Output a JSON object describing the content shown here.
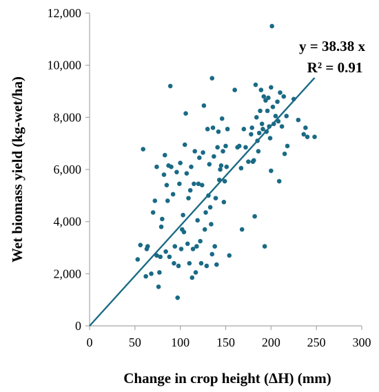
{
  "chart_data": {
    "type": "scatter",
    "title": "",
    "xlabel": "Change in crop height (ΔH) (mm)",
    "ylabel": "Wet biomass yield (kg-wet/ha)",
    "xlim": [
      0,
      300
    ],
    "ylim": [
      0,
      12000
    ],
    "x_ticks": [
      0,
      50,
      100,
      150,
      200,
      250,
      300
    ],
    "y_ticks": [
      0,
      2000,
      4000,
      6000,
      8000,
      10000,
      12000
    ],
    "x_tick_labels": [
      "0",
      "50",
      "100",
      "150",
      "200",
      "250",
      "300"
    ],
    "y_tick_labels": [
      "0",
      "2,000",
      "4,000",
      "6,000",
      "8,000",
      "10,000",
      "12,000"
    ],
    "grid": false,
    "legend": "none",
    "colors": {
      "points": "#1a6a85",
      "trendline": "#1a6a85"
    },
    "trendline": {
      "slope": 38.38,
      "intercept": 0,
      "x_range": [
        0,
        248
      ]
    },
    "annotations": {
      "equation": "y = 38.38 x",
      "r2": "R² = 0.91"
    },
    "series": [
      {
        "points": [
          [
            53,
            2550
          ],
          [
            56,
            3100
          ],
          [
            59,
            6780
          ],
          [
            62,
            1900
          ],
          [
            63,
            2950
          ],
          [
            64,
            3050
          ],
          [
            68,
            2000
          ],
          [
            70,
            4350
          ],
          [
            72,
            4800
          ],
          [
            74,
            6100
          ],
          [
            74,
            2700
          ],
          [
            76,
            1500
          ],
          [
            77,
            2050
          ],
          [
            78,
            2650
          ],
          [
            79,
            3800
          ],
          [
            80,
            4100
          ],
          [
            82,
            5800
          ],
          [
            83,
            6550
          ],
          [
            84,
            2850
          ],
          [
            85,
            5400
          ],
          [
            86,
            4800
          ],
          [
            87,
            6150
          ],
          [
            88,
            2650
          ],
          [
            89,
            9200
          ],
          [
            90,
            6100
          ],
          [
            92,
            5050
          ],
          [
            93,
            2400
          ],
          [
            94,
            3050
          ],
          [
            96,
            5900
          ],
          [
            97,
            1080
          ],
          [
            98,
            2300
          ],
          [
            99,
            5450
          ],
          [
            100,
            6250
          ],
          [
            101,
            2950
          ],
          [
            102,
            3700
          ],
          [
            103,
            4250
          ],
          [
            104,
            3600
          ],
          [
            105,
            6950
          ],
          [
            106,
            8150
          ],
          [
            107,
            5850
          ],
          [
            108,
            3150
          ],
          [
            109,
            4900
          ],
          [
            110,
            2400
          ],
          [
            111,
            5200
          ],
          [
            112,
            6100
          ],
          [
            113,
            1850
          ],
          [
            114,
            2950
          ],
          [
            115,
            5450
          ],
          [
            116,
            6700
          ],
          [
            117,
            2050
          ],
          [
            118,
            3050
          ],
          [
            119,
            4050
          ],
          [
            120,
            5450
          ],
          [
            121,
            6450
          ],
          [
            122,
            3250
          ],
          [
            123,
            2400
          ],
          [
            124,
            5400
          ],
          [
            125,
            6650
          ],
          [
            126,
            8450
          ],
          [
            127,
            3700
          ],
          [
            128,
            4350
          ],
          [
            129,
            2300
          ],
          [
            130,
            7550
          ],
          [
            131,
            5000
          ],
          [
            132,
            6200
          ],
          [
            133,
            4550
          ],
          [
            134,
            3900
          ],
          [
            135,
            9500
          ],
          [
            135,
            2750
          ],
          [
            136,
            7600
          ],
          [
            137,
            6500
          ],
          [
            138,
            3050
          ],
          [
            139,
            4900
          ],
          [
            140,
            2350
          ],
          [
            141,
            6850
          ],
          [
            142,
            7450
          ],
          [
            143,
            5600
          ],
          [
            144,
            6000
          ],
          [
            145,
            6150
          ],
          [
            146,
            7950
          ],
          [
            147,
            6700
          ],
          [
            148,
            4750
          ],
          [
            149,
            5550
          ],
          [
            150,
            6900
          ],
          [
            151,
            6100
          ],
          [
            152,
            7550
          ],
          [
            154,
            2700
          ],
          [
            160,
            9050
          ],
          [
            163,
            6850
          ],
          [
            165,
            6900
          ],
          [
            167,
            6050
          ],
          [
            168,
            3700
          ],
          [
            170,
            7550
          ],
          [
            172,
            6850
          ],
          [
            175,
            6300
          ],
          [
            178,
            7350
          ],
          [
            179,
            7600
          ],
          [
            180,
            6300
          ],
          [
            181,
            6350
          ],
          [
            182,
            4200
          ],
          [
            183,
            9250
          ],
          [
            184,
            8000
          ],
          [
            185,
            7100
          ],
          [
            186,
            6700
          ],
          [
            187,
            7400
          ],
          [
            188,
            8250
          ],
          [
            189,
            9050
          ],
          [
            190,
            7750
          ],
          [
            191,
            7550
          ],
          [
            192,
            8800
          ],
          [
            193,
            3050
          ],
          [
            194,
            8650
          ],
          [
            195,
            7450
          ],
          [
            196,
            8250
          ],
          [
            197,
            8750
          ],
          [
            198,
            7650
          ],
          [
            199,
            7200
          ],
          [
            200,
            5950
          ],
          [
            200,
            9150
          ],
          [
            201,
            11500
          ],
          [
            202,
            8400
          ],
          [
            203,
            7750
          ],
          [
            205,
            8050
          ],
          [
            207,
            8600
          ],
          [
            208,
            7850
          ],
          [
            209,
            5550
          ],
          [
            210,
            8950
          ],
          [
            212,
            7650
          ],
          [
            214,
            8800
          ],
          [
            215,
            6600
          ],
          [
            217,
            8050
          ],
          [
            218,
            6900
          ],
          [
            225,
            8700
          ],
          [
            230,
            7900
          ],
          [
            236,
            7350
          ],
          [
            238,
            7600
          ],
          [
            240,
            7250
          ],
          [
            248,
            7250
          ]
        ]
      }
    ]
  }
}
